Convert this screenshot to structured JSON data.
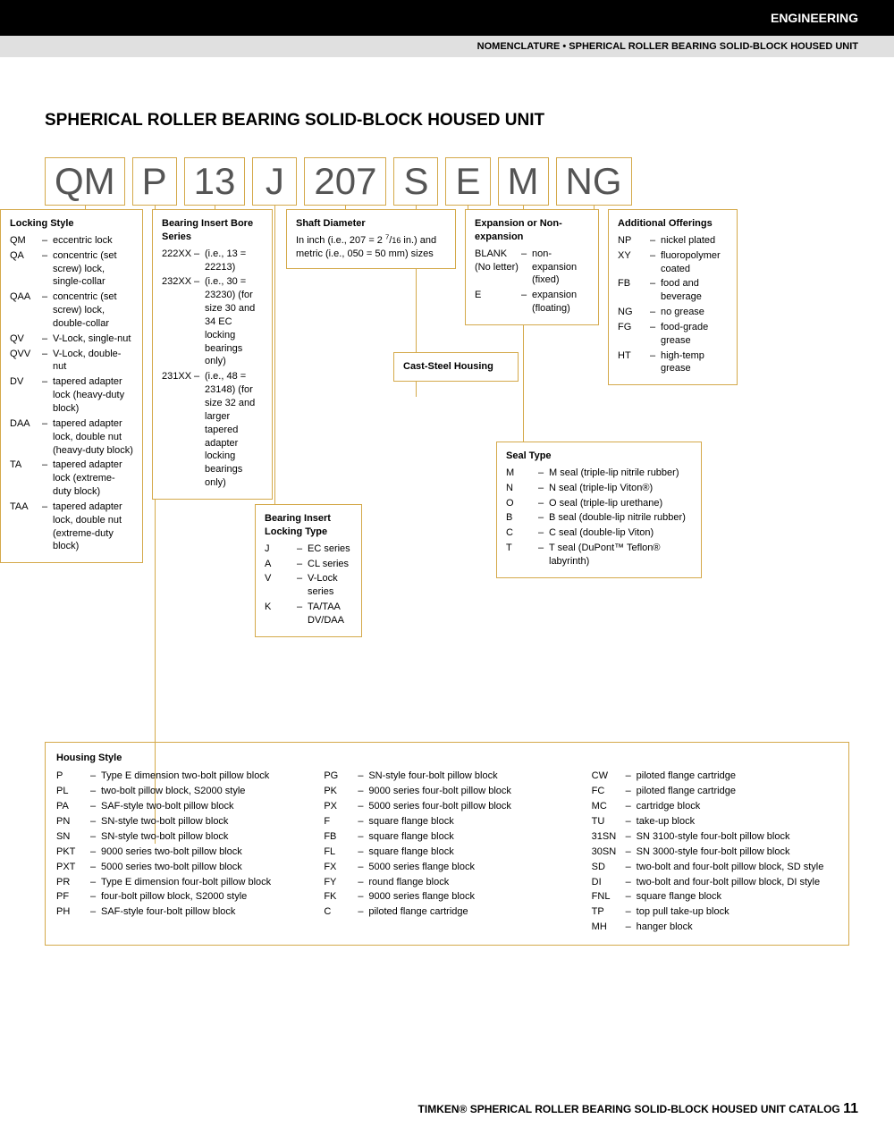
{
  "header": {
    "section": "ENGINEERING",
    "breadcrumb": "NOMENCLATURE • SPHERICAL ROLLER BEARING SOLID-BLOCK HOUSED UNIT"
  },
  "title": "SPHERICAL ROLLER BEARING SOLID-BLOCK HOUSED UNIT",
  "chips": [
    "QM",
    "P",
    "13",
    "J",
    "207",
    "S",
    "E",
    "M",
    "NG"
  ],
  "lockingStyle": {
    "title": "Locking Style",
    "items": [
      {
        "k": "QM",
        "v": "eccentric lock"
      },
      {
        "k": "QA",
        "v": "concentric (set screw) lock, single-collar"
      },
      {
        "k": "QAA",
        "v": "concentric (set screw) lock, double-collar"
      },
      {
        "k": "QV",
        "v": "V-Lock, single-nut"
      },
      {
        "k": "QVV",
        "v": "V-Lock, double-nut"
      },
      {
        "k": "DV",
        "v": "tapered adapter lock (heavy-duty block)"
      },
      {
        "k": "DAA",
        "v": "tapered adapter lock, double nut (heavy-duty block)"
      },
      {
        "k": "TA",
        "v": "tapered adapter lock (extreme-duty block)"
      },
      {
        "k": "TAA",
        "v": "tapered adapter lock, double nut (extreme-duty block)"
      }
    ]
  },
  "boreSeries": {
    "title": "Bearing Insert Bore Series",
    "items": [
      {
        "k": "222XX",
        "v": "(i.e., 13 = 22213)"
      },
      {
        "k": "232XX",
        "v": "(i.e., 30 = 23230) (for size 30 and 34 EC locking bearings only)"
      },
      {
        "k": "231XX",
        "v": "(i.e., 48 = 23148) (for size 32 and larger tapered adapter locking bearings only)"
      }
    ]
  },
  "lockingType": {
    "title": "Bearing Insert Locking Type",
    "items": [
      {
        "k": "J",
        "v": "EC series"
      },
      {
        "k": "A",
        "v": "CL series"
      },
      {
        "k": "V",
        "v": "V-Lock series"
      },
      {
        "k": "K",
        "v": "TA/TAA DV/DAA"
      }
    ]
  },
  "shaftDiameter": {
    "title": "Shaft Diameter",
    "text": "In inch (i.e., 207 = 2 7/16 in.) and metric (i.e., 050 = 50 mm) sizes"
  },
  "castSteel": "Cast-Steel Housing",
  "expansion": {
    "title": "Expansion or Non-expansion",
    "items": [
      {
        "k": "BLANK (No letter)",
        "v": "non-expansion (fixed)"
      },
      {
        "k": "E",
        "v": "expansion (floating)"
      }
    ]
  },
  "sealType": {
    "title": "Seal Type",
    "items": [
      {
        "k": "M",
        "v": "M seal (triple-lip nitrile rubber)"
      },
      {
        "k": "N",
        "v": "N seal (triple-lip Viton®)"
      },
      {
        "k": "O",
        "v": "O seal (triple-lip urethane)"
      },
      {
        "k": "B",
        "v": "B seal (double-lip nitrile rubber)"
      },
      {
        "k": "C",
        "v": "C seal (double-lip Viton)"
      },
      {
        "k": "T",
        "v": "T seal (DuPont™ Teflon® labyrinth)"
      }
    ]
  },
  "additional": {
    "title": "Additional Offerings",
    "items": [
      {
        "k": "NP",
        "v": "nickel plated"
      },
      {
        "k": "XY",
        "v": "fluoropolymer coated"
      },
      {
        "k": "FB",
        "v": "food and beverage"
      },
      {
        "k": "NG",
        "v": "no grease"
      },
      {
        "k": "FG",
        "v": "food-grade grease"
      },
      {
        "k": "HT",
        "v": "high-temp grease"
      }
    ]
  },
  "housingStyle": {
    "title": "Housing Style",
    "columns": [
      [
        {
          "k": "P",
          "v": "Type E dimension two-bolt pillow block"
        },
        {
          "k": "PL",
          "v": "two-bolt pillow block, S2000 style"
        },
        {
          "k": "PA",
          "v": "SAF-style two-bolt pillow block"
        },
        {
          "k": "PN",
          "v": "SN-style two-bolt pillow block"
        },
        {
          "k": "SN",
          "v": "SN-style two-bolt pillow block"
        },
        {
          "k": "PKT",
          "v": "9000 series two-bolt pillow block"
        },
        {
          "k": "PXT",
          "v": "5000 series two-bolt pillow block"
        },
        {
          "k": "PR",
          "v": "Type E dimension four-bolt pillow block"
        },
        {
          "k": "PF",
          "v": "four-bolt pillow block, S2000 style"
        },
        {
          "k": "PH",
          "v": "SAF-style four-bolt pillow block"
        }
      ],
      [
        {
          "k": "PG",
          "v": "SN-style four-bolt pillow block"
        },
        {
          "k": "PK",
          "v": "9000 series four-bolt pillow block"
        },
        {
          "k": "PX",
          "v": "5000 series four-bolt pillow block"
        },
        {
          "k": "F",
          "v": "square flange block"
        },
        {
          "k": "FB",
          "v": "square flange block"
        },
        {
          "k": "FL",
          "v": "square flange block"
        },
        {
          "k": "FX",
          "v": "5000 series flange block"
        },
        {
          "k": "FY",
          "v": "round flange block"
        },
        {
          "k": "FK",
          "v": "9000 series flange block"
        },
        {
          "k": "C",
          "v": "piloted flange cartridge"
        }
      ],
      [
        {
          "k": "CW",
          "v": "piloted flange cartridge"
        },
        {
          "k": "FC",
          "v": "piloted flange cartridge"
        },
        {
          "k": "MC",
          "v": "cartridge block"
        },
        {
          "k": "TU",
          "v": "take-up block"
        },
        {
          "k": "31SN",
          "v": "SN 3100-style four-bolt pillow block"
        },
        {
          "k": "30SN",
          "v": "SN 3000-style four-bolt pillow block"
        },
        {
          "k": "SD",
          "v": "two-bolt and four-bolt pillow block, SD style"
        },
        {
          "k": "DI",
          "v": "two-bolt and four-bolt pillow block, DI style"
        },
        {
          "k": "FNL",
          "v": "square flange block"
        },
        {
          "k": "TP",
          "v": "top pull take-up block"
        },
        {
          "k": "MH",
          "v": "hanger block"
        }
      ]
    ]
  },
  "footer": {
    "brand": "TIMKEN®",
    "catalog": "SPHERICAL ROLLER BEARING SOLID-BLOCK HOUSED UNIT CATALOG",
    "page": "11"
  }
}
